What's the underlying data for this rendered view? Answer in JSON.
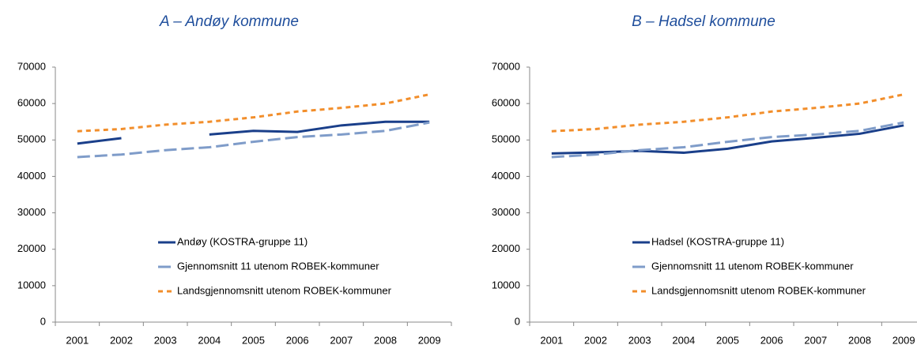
{
  "chart_data": [
    {
      "type": "line",
      "title": "A – Andøy kommune",
      "categories": [
        "2001",
        "2002",
        "2003",
        "2004",
        "2005",
        "2006",
        "2007",
        "2008",
        "2009"
      ],
      "series": [
        {
          "name": "Andøy (KOSTRA-gruppe 11)",
          "color": "#1a3f8a",
          "dash": "solid",
          "values": [
            49000,
            50500,
            null,
            51500,
            52500,
            52200,
            54000,
            55000,
            55000
          ]
        },
        {
          "name": "Gjennomsnitt 11 utenom ROBEK-kommuner",
          "color": "#7f9cc9",
          "dash": "long",
          "values": [
            45300,
            46000,
            47200,
            48000,
            49500,
            50800,
            51500,
            52500,
            54800
          ]
        },
        {
          "name": "Landsgjennomsnitt utenom ROBEK-kommuner",
          "color": "#f28e2b",
          "dash": "short",
          "values": [
            52400,
            53000,
            54200,
            55000,
            56200,
            57800,
            58800,
            60000,
            62500
          ]
        }
      ],
      "ylim": [
        0,
        70000
      ],
      "yticks": [
        0,
        10000,
        20000,
        30000,
        40000,
        50000,
        60000,
        70000
      ],
      "grid": false,
      "legend": "lower center"
    },
    {
      "type": "line",
      "title": "B – Hadsel kommune",
      "categories": [
        "2001",
        "2002",
        "2003",
        "2004",
        "2005",
        "2006",
        "2007",
        "2008",
        "2009"
      ],
      "series": [
        {
          "name": "Hadsel (KOSTRA-gruppe 11)",
          "color": "#1a3f8a",
          "dash": "solid",
          "values": [
            46300,
            46600,
            47000,
            46500,
            47600,
            49600,
            50600,
            51700,
            54000
          ]
        },
        {
          "name": "Gjennomsnitt 11 utenom ROBEK-kommuner",
          "color": "#7f9cc9",
          "dash": "long",
          "values": [
            45300,
            46000,
            47200,
            48000,
            49500,
            50800,
            51500,
            52500,
            54800
          ]
        },
        {
          "name": "Landsgjennomsnitt utenom ROBEK-kommuner",
          "color": "#f28e2b",
          "dash": "short",
          "values": [
            52400,
            53000,
            54200,
            55000,
            56200,
            57800,
            58800,
            60000,
            62500
          ]
        }
      ],
      "ylim": [
        0,
        70000
      ],
      "yticks": [
        0,
        10000,
        20000,
        30000,
        40000,
        50000,
        60000,
        70000
      ],
      "grid": false,
      "legend": "lower center"
    }
  ]
}
